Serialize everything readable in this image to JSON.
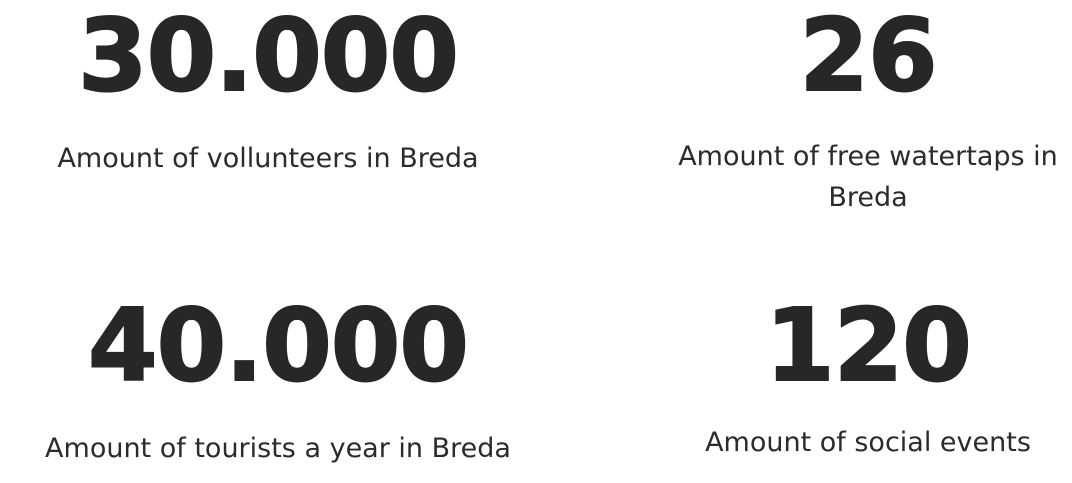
{
  "stats": [
    {
      "value": "30.000",
      "label": "Amount of vollunteers in Breda"
    },
    {
      "value": "26",
      "label": "Amount of free watertaps in Breda"
    },
    {
      "value": "40.000",
      "label": "Amount of tourists a year in Breda"
    },
    {
      "value": "120",
      "label": "Amount of social events"
    }
  ],
  "colors": {
    "number": "#272727",
    "label": "#2b2b2b",
    "background": "#ffffff"
  }
}
